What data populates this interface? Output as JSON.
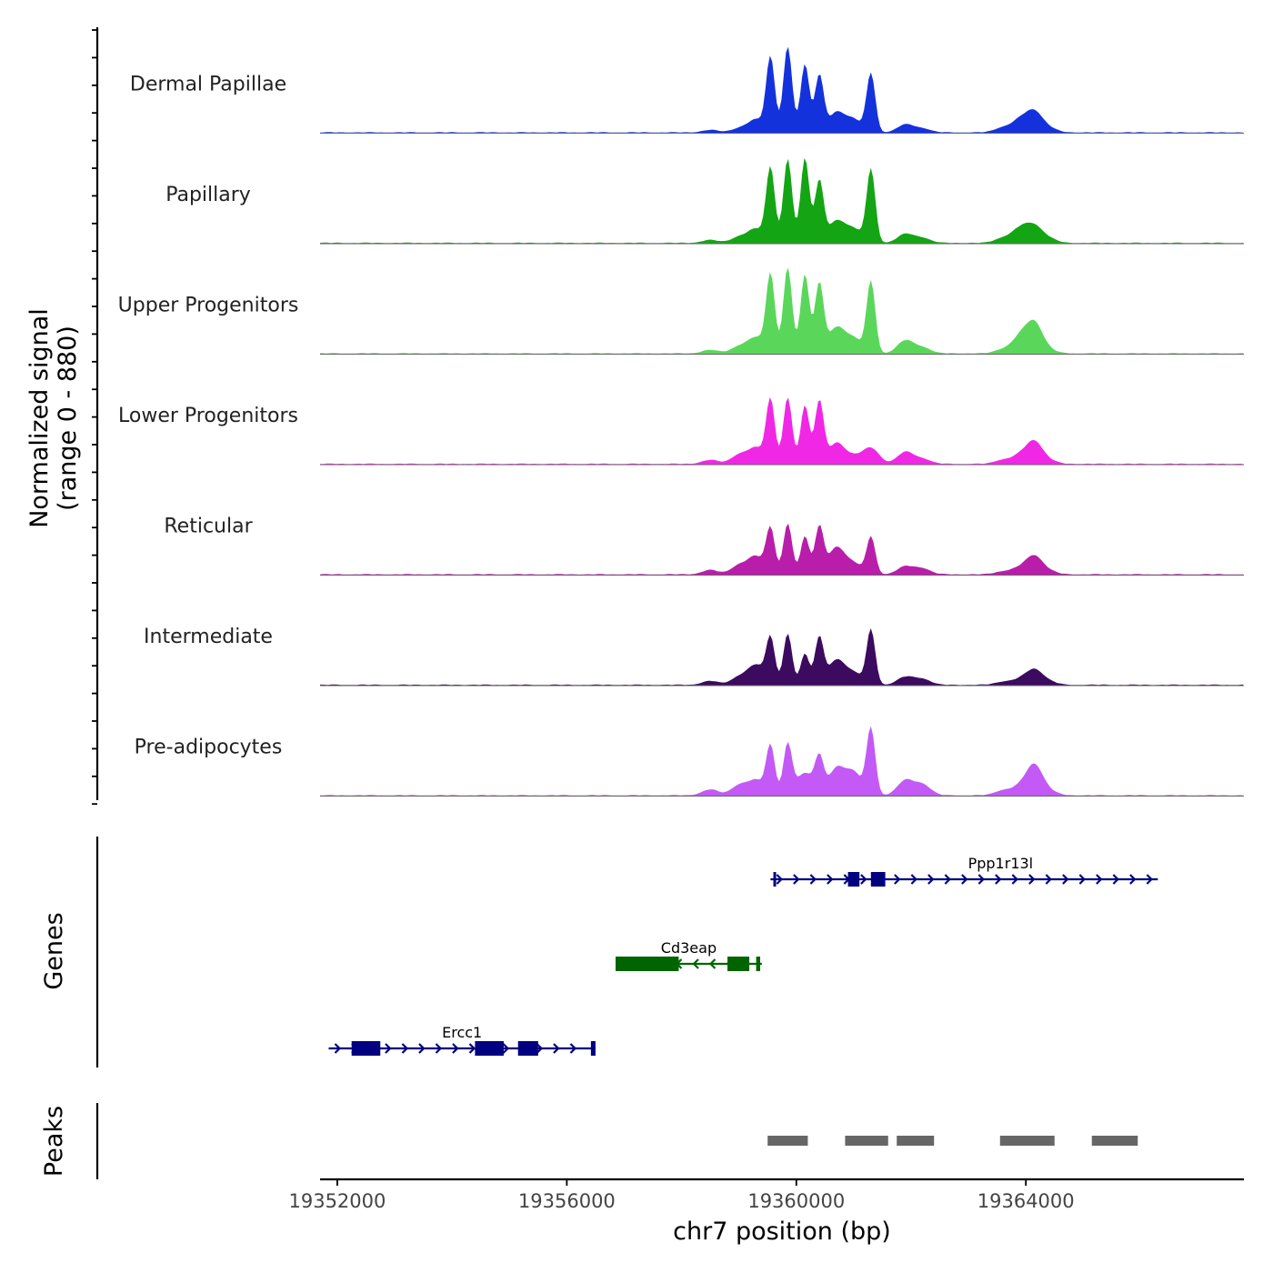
{
  "chart_data": {
    "type": "area",
    "chromosome": "chr7",
    "xlabel": "chr7 position (bp)",
    "xlim": [
      19351700,
      19367800
    ],
    "x_ticks": [
      19352000,
      19356000,
      19360000,
      19364000
    ],
    "x_tick_labels": [
      "19352000",
      "19356000",
      "19360000",
      "19364000"
    ],
    "ylabel_line1": "Normalized signal",
    "ylabel_line2": "(range 0 - 880)",
    "ylim": [
      0,
      880
    ],
    "genes_label": "Genes",
    "peaks_label": "Peaks",
    "tracks": [
      {
        "name": "Dermal Papillae",
        "color": "#1432dc",
        "peaks": [
          [
            19358500,
            25
          ],
          [
            19359000,
            40
          ],
          [
            19359300,
            130
          ],
          [
            19359550,
            760
          ],
          [
            19359850,
            880
          ],
          [
            19360150,
            700
          ],
          [
            19360400,
            580
          ],
          [
            19360700,
            200
          ],
          [
            19361000,
            130
          ],
          [
            19361300,
            600
          ],
          [
            19361900,
            80
          ],
          [
            19362200,
            40
          ],
          [
            19363600,
            50
          ],
          [
            19363900,
            120
          ],
          [
            19364150,
            200
          ],
          [
            19364400,
            40
          ]
        ]
      },
      {
        "name": "Papillary",
        "color": "#14a514",
        "peaks": [
          [
            19358500,
            30
          ],
          [
            19359000,
            60
          ],
          [
            19359300,
            140
          ],
          [
            19359550,
            760
          ],
          [
            19359850,
            860
          ],
          [
            19360150,
            870
          ],
          [
            19360400,
            630
          ],
          [
            19360700,
            220
          ],
          [
            19361000,
            140
          ],
          [
            19361300,
            750
          ],
          [
            19361900,
            90
          ],
          [
            19362200,
            50
          ],
          [
            19363600,
            50
          ],
          [
            19363900,
            140
          ],
          [
            19364150,
            160
          ],
          [
            19364400,
            40
          ]
        ]
      },
      {
        "name": "Upper Progenitors",
        "color": "#5ad75a",
        "peaks": [
          [
            19358500,
            35
          ],
          [
            19359000,
            70
          ],
          [
            19359300,
            160
          ],
          [
            19359550,
            800
          ],
          [
            19359850,
            880
          ],
          [
            19360150,
            810
          ],
          [
            19360400,
            710
          ],
          [
            19360700,
            260
          ],
          [
            19361000,
            150
          ],
          [
            19361300,
            730
          ],
          [
            19361900,
            130
          ],
          [
            19362200,
            60
          ],
          [
            19363600,
            40
          ],
          [
            19363900,
            160
          ],
          [
            19364150,
            300
          ],
          [
            19364400,
            30
          ]
        ]
      },
      {
        "name": "Lower Progenitors",
        "color": "#f028e6",
        "peaks": [
          [
            19358500,
            40
          ],
          [
            19359000,
            90
          ],
          [
            19359300,
            160
          ],
          [
            19359550,
            650
          ],
          [
            19359850,
            680
          ],
          [
            19360150,
            600
          ],
          [
            19360400,
            640
          ],
          [
            19360700,
            210
          ],
          [
            19361000,
            70
          ],
          [
            19361300,
            160
          ],
          [
            19361900,
            120
          ],
          [
            19362200,
            50
          ],
          [
            19363600,
            40
          ],
          [
            19363900,
            80
          ],
          [
            19364150,
            220
          ],
          [
            19364400,
            30
          ]
        ]
      },
      {
        "name": "Reticular",
        "color": "#b91eaa",
        "peaks": [
          [
            19358500,
            45
          ],
          [
            19359000,
            90
          ],
          [
            19359300,
            180
          ],
          [
            19359550,
            460
          ],
          [
            19359850,
            520
          ],
          [
            19360150,
            390
          ],
          [
            19360400,
            480
          ],
          [
            19360700,
            270
          ],
          [
            19361000,
            110
          ],
          [
            19361300,
            380
          ],
          [
            19361900,
            80
          ],
          [
            19362200,
            60
          ],
          [
            19363600,
            30
          ],
          [
            19363900,
            60
          ],
          [
            19364150,
            180
          ],
          [
            19364400,
            30
          ]
        ]
      },
      {
        "name": "Intermediate",
        "color": "#3c0a5f",
        "peaks": [
          [
            19358500,
            40
          ],
          [
            19359000,
            80
          ],
          [
            19359300,
            200
          ],
          [
            19359550,
            470
          ],
          [
            19359850,
            520
          ],
          [
            19360150,
            320
          ],
          [
            19360400,
            480
          ],
          [
            19360700,
            250
          ],
          [
            19361000,
            120
          ],
          [
            19361300,
            560
          ],
          [
            19361900,
            80
          ],
          [
            19362200,
            60
          ],
          [
            19363600,
            30
          ],
          [
            19363900,
            50
          ],
          [
            19364150,
            150
          ],
          [
            19364400,
            30
          ]
        ]
      },
      {
        "name": "Pre-adipocytes",
        "color": "#c35af5",
        "peaks": [
          [
            19358500,
            60
          ],
          [
            19359000,
            100
          ],
          [
            19359300,
            150
          ],
          [
            19359550,
            500
          ],
          [
            19359850,
            520
          ],
          [
            19360150,
            230
          ],
          [
            19360400,
            360
          ],
          [
            19360700,
            270
          ],
          [
            19361000,
            230
          ],
          [
            19361300,
            680
          ],
          [
            19361900,
            150
          ],
          [
            19362200,
            110
          ],
          [
            19363600,
            50
          ],
          [
            19363900,
            80
          ],
          [
            19364150,
            300
          ],
          [
            19364400,
            40
          ]
        ]
      }
    ],
    "genes": [
      {
        "name": "Ppp1r13l",
        "strand": "+",
        "color": "#000080",
        "start": 19359550,
        "end": 19366300,
        "exons": [
          [
            19359600,
            19359620
          ],
          [
            19360900,
            19361100
          ],
          [
            19361300,
            19361550
          ]
        ]
      },
      {
        "name": "Cd3eap",
        "strand": "-",
        "color": "#006400",
        "start": 19356850,
        "end": 19359400,
        "exons": [
          [
            19356850,
            19357950
          ],
          [
            19358800,
            19359180
          ],
          [
            19359300,
            19359370
          ]
        ]
      },
      {
        "name": "Ercc1",
        "strand": "+",
        "color": "#000080",
        "start": 19351850,
        "end": 19356500,
        "exons": [
          [
            19352250,
            19352750
          ],
          [
            19354400,
            19354900
          ],
          [
            19355150,
            19355500
          ],
          [
            19356420,
            19356500
          ]
        ]
      }
    ],
    "peaks": [
      [
        19359500,
        19360200
      ],
      [
        19360850,
        19361600
      ],
      [
        19361750,
        19362400
      ],
      [
        19363550,
        19364500
      ],
      [
        19365150,
        19365950
      ]
    ]
  }
}
